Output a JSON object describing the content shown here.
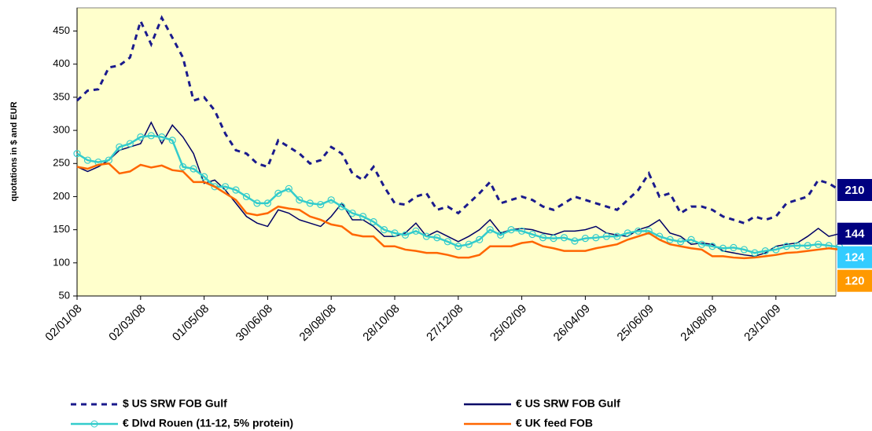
{
  "chart_data": {
    "type": "line",
    "y_label": "quotations in $ and EUR",
    "ylim": [
      50,
      485
    ],
    "yticks": [
      50,
      100,
      150,
      200,
      250,
      300,
      350,
      400,
      450
    ],
    "background": "#ffffcc",
    "categories": [
      "02/01/08",
      null,
      null,
      null,
      null,
      null,
      "02/03/08",
      null,
      null,
      null,
      null,
      null,
      "01/05/08",
      null,
      null,
      null,
      null,
      null,
      "30/06/08",
      null,
      null,
      null,
      null,
      null,
      "29/08/08",
      null,
      null,
      null,
      null,
      null,
      "28/10/08",
      null,
      null,
      null,
      null,
      null,
      "27/12/08",
      null,
      null,
      null,
      null,
      null,
      "25/02/09",
      null,
      null,
      null,
      null,
      null,
      "26/04/09",
      null,
      null,
      null,
      null,
      null,
      "25/06/09",
      null,
      null,
      null,
      null,
      null,
      "24/08/09",
      null,
      null,
      null,
      null,
      null,
      "23/10/09",
      null,
      null,
      null,
      null,
      null,
      null
    ],
    "series": [
      {
        "name": "$ US SRW FOB Gulf",
        "color": "#1a1a8c",
        "line_style": "dashed",
        "end_label": 210,
        "end_color": "#000080",
        "values": [
          345,
          360,
          362,
          395,
          398,
          410,
          465,
          430,
          470,
          440,
          410,
          345,
          350,
          330,
          295,
          270,
          265,
          250,
          245,
          285,
          275,
          265,
          250,
          255,
          275,
          265,
          235,
          225,
          245,
          215,
          190,
          188,
          200,
          205,
          180,
          185,
          175,
          190,
          205,
          222,
          190,
          195,
          200,
          195,
          185,
          180,
          190,
          200,
          195,
          190,
          185,
          180,
          195,
          210,
          235,
          200,
          205,
          175,
          185,
          185,
          180,
          170,
          165,
          160,
          170,
          165,
          170,
          190,
          195,
          200,
          225,
          220,
          210
        ]
      },
      {
        "name": "€ US SRW FOB Gulf",
        "color": "#000066",
        "line_style": "solid",
        "end_label": 144,
        "end_color": "#000080",
        "values": [
          245,
          238,
          245,
          255,
          270,
          275,
          280,
          312,
          280,
          308,
          290,
          265,
          220,
          225,
          210,
          190,
          170,
          160,
          155,
          180,
          175,
          165,
          160,
          155,
          170,
          190,
          165,
          165,
          155,
          140,
          140,
          145,
          160,
          140,
          148,
          140,
          132,
          140,
          150,
          165,
          145,
          150,
          152,
          150,
          145,
          142,
          148,
          148,
          150,
          155,
          145,
          142,
          140,
          150,
          155,
          165,
          145,
          140,
          128,
          130,
          128,
          118,
          115,
          112,
          110,
          115,
          125,
          128,
          130,
          140,
          152,
          140,
          144
        ]
      },
      {
        "name": "€  Dlvd Rouen (11-12, 5% protein)",
        "color": "#33cccc",
        "line_style": "solid",
        "marker": "circle",
        "end_label": 124,
        "end_color": "#33ccff",
        "values": [
          265,
          255,
          252,
          255,
          275,
          280,
          290,
          292,
          290,
          285,
          245,
          242,
          230,
          215,
          215,
          210,
          200,
          190,
          190,
          205,
          212,
          195,
          190,
          188,
          195,
          185,
          175,
          170,
          162,
          150,
          145,
          142,
          148,
          140,
          138,
          132,
          125,
          128,
          135,
          150,
          142,
          150,
          148,
          143,
          138,
          137,
          138,
          133,
          137,
          138,
          140,
          140,
          145,
          148,
          148,
          140,
          135,
          132,
          135,
          128,
          125,
          122,
          123,
          120,
          115,
          118,
          120,
          125,
          126,
          126,
          128,
          126,
          124
        ]
      },
      {
        "name": "€  UK feed  FOB",
        "color": "#ff6600",
        "line_style": "solid",
        "end_label": 120,
        "end_color": "#ff9900",
        "values": [
          245,
          242,
          248,
          250,
          235,
          238,
          248,
          244,
          247,
          240,
          238,
          222,
          222,
          215,
          205,
          195,
          175,
          172,
          175,
          185,
          182,
          180,
          170,
          165,
          158,
          155,
          143,
          140,
          140,
          125,
          125,
          120,
          118,
          115,
          115,
          112,
          108,
          108,
          112,
          125,
          125,
          125,
          130,
          132,
          125,
          122,
          118,
          118,
          118,
          122,
          125,
          128,
          135,
          140,
          145,
          135,
          128,
          125,
          122,
          120,
          110,
          110,
          108,
          107,
          108,
          110,
          112,
          115,
          116,
          118,
          120,
          122,
          120
        ]
      }
    ]
  }
}
